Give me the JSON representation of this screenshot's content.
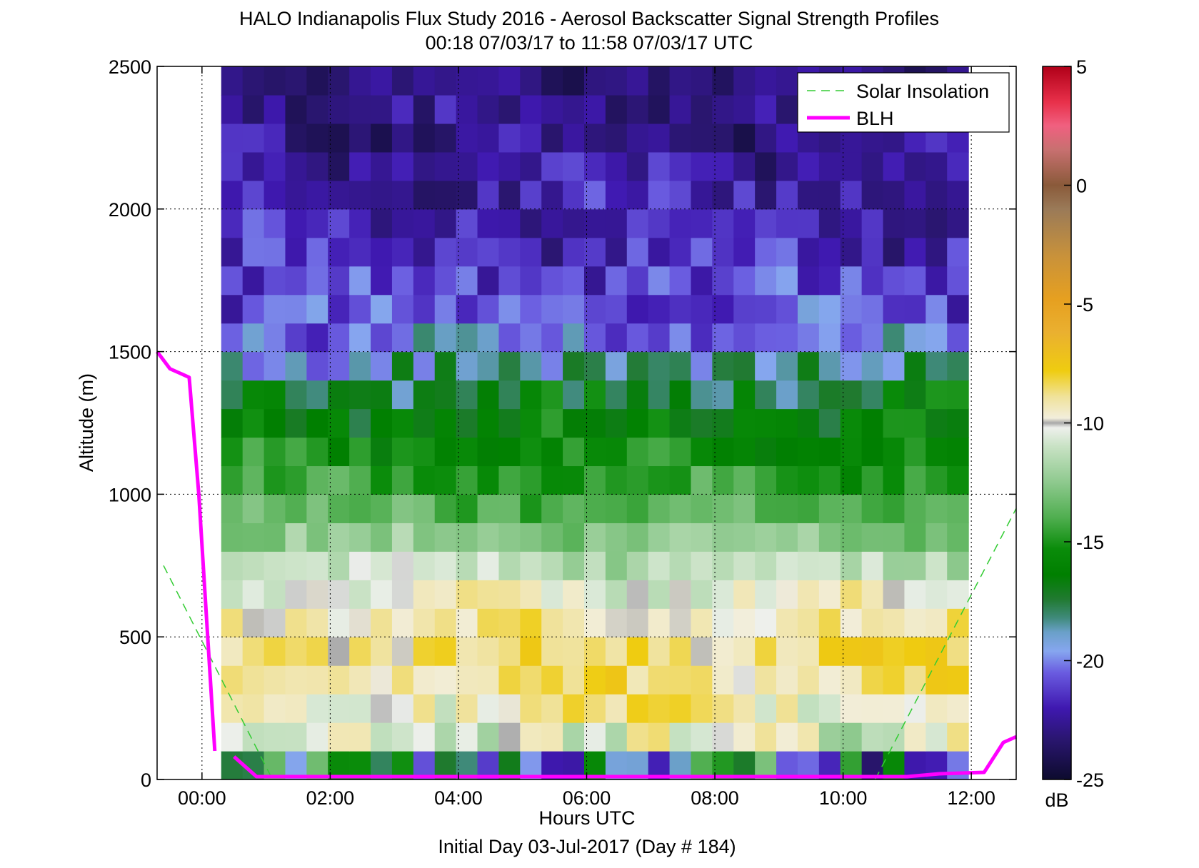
{
  "chart_data": {
    "type": "heatmap",
    "title": "HALO Indianapolis Flux Study 2016 - Aerosol Backscatter Signal Strength Profiles",
    "subtitle": "00:18 07/03/17 to 11:58 07/03/17  UTC",
    "xlabel": "Hours UTC",
    "xlabel2": "Initial Day 03-Jul-2017 (Day # 184)",
    "ylabel": "Altitude (m)",
    "xlim_hours": [
      -0.7,
      12.7
    ],
    "ylim": [
      0,
      2500
    ],
    "x_ticks": [
      {
        "value": 0,
        "label": "00:00"
      },
      {
        "value": 2,
        "label": "02:00"
      },
      {
        "value": 4,
        "label": "04:00"
      },
      {
        "value": 6,
        "label": "06:00"
      },
      {
        "value": 8,
        "label": "08:00"
      },
      {
        "value": 10,
        "label": "10:00"
      },
      {
        "value": 12,
        "label": "12:00"
      }
    ],
    "y_ticks": [
      0,
      500,
      1000,
      1500,
      2000,
      2500
    ],
    "grid": true,
    "colorbar": {
      "label": "dB",
      "range": [
        -25,
        5
      ],
      "ticks": [
        5,
        0,
        -5,
        -10,
        -15,
        -20,
        -25
      ],
      "stops": [
        {
          "v": -25,
          "c": "#0d0b2e"
        },
        {
          "v": -23.3,
          "c": "#2a1670"
        },
        {
          "v": -22,
          "c": "#3f18b0"
        },
        {
          "v": -20.5,
          "c": "#6a5ce0"
        },
        {
          "v": -19.6,
          "c": "#86a6ef"
        },
        {
          "v": -18.8,
          "c": "#6aa0c8"
        },
        {
          "v": -18.2,
          "c": "#3f8a7a"
        },
        {
          "v": -17.4,
          "c": "#207a30"
        },
        {
          "v": -16.4,
          "c": "#007f00"
        },
        {
          "v": -15.3,
          "c": "#0a8c0a"
        },
        {
          "v": -14,
          "c": "#4fae4f"
        },
        {
          "v": -12.5,
          "c": "#8ec98e"
        },
        {
          "v": -11,
          "c": "#c8e2c4"
        },
        {
          "v": -10.2,
          "c": "#eef0ec"
        },
        {
          "v": -10,
          "c": "#a8a8a8"
        },
        {
          "v": -9.8,
          "c": "#f2eedc"
        },
        {
          "v": -8.9,
          "c": "#f0e29a"
        },
        {
          "v": -7.8,
          "c": "#efcc10"
        },
        {
          "v": -6.2,
          "c": "#eab030"
        },
        {
          "v": -4.8,
          "c": "#e6a020"
        },
        {
          "v": -3,
          "c": "#c9923a"
        },
        {
          "v": -1,
          "c": "#9a7a58"
        },
        {
          "v": 0,
          "c": "#8a5a3a"
        },
        {
          "v": 1.5,
          "c": "#c87070"
        },
        {
          "v": 2.5,
          "c": "#f06080"
        },
        {
          "v": 3.5,
          "c": "#e8304a"
        },
        {
          "v": 5,
          "c": "#b00018"
        }
      ]
    },
    "heatmap": {
      "x_start_hours": 0.3,
      "x_bin_hours": 0.333,
      "z_start_m": 50,
      "z_bin_m": 100,
      "row_layers_dB": [
        {
          "z_m": 50,
          "mean": -18,
          "spread": 5
        },
        {
          "z_m": 150,
          "mean": -10.3,
          "spread": 1.8
        },
        {
          "z_m": 250,
          "mean": -9.6,
          "spread": 1.4
        },
        {
          "z_m": 350,
          "mean": -8.8,
          "spread": 1.0
        },
        {
          "z_m": 450,
          "mean": -8.6,
          "spread": 1.0
        },
        {
          "z_m": 550,
          "mean": -9.2,
          "spread": 1.0
        },
        {
          "z_m": 650,
          "mean": -10.1,
          "spread": 1.0
        },
        {
          "z_m": 750,
          "mean": -11.4,
          "spread": 0.9
        },
        {
          "z_m": 850,
          "mean": -12.6,
          "spread": 1.0
        },
        {
          "z_m": 950,
          "mean": -13.6,
          "spread": 1.0
        },
        {
          "z_m": 1050,
          "mean": -14.6,
          "spread": 1.0
        },
        {
          "z_m": 1150,
          "mean": -15.4,
          "spread": 1.0
        },
        {
          "z_m": 1250,
          "mean": -16.2,
          "spread": 1.2
        },
        {
          "z_m": 1350,
          "mean": -17.0,
          "spread": 1.8
        },
        {
          "z_m": 1450,
          "mean": -18.6,
          "spread": 1.8
        },
        {
          "z_m": 1550,
          "mean": -20.0,
          "spread": 1.6
        },
        {
          "z_m": 1650,
          "mean": -20.8,
          "spread": 1.4
        },
        {
          "z_m": 1750,
          "mean": -21.2,
          "spread": 1.4
        },
        {
          "z_m": 1850,
          "mean": -21.6,
          "spread": 1.4
        },
        {
          "z_m": 1950,
          "mean": -21.8,
          "spread": 1.4
        },
        {
          "z_m": 2050,
          "mean": -22.0,
          "spread": 1.3
        },
        {
          "z_m": 2150,
          "mean": -22.3,
          "spread": 1.3
        },
        {
          "z_m": 2250,
          "mean": -22.6,
          "spread": 1.3
        },
        {
          "z_m": 2350,
          "mean": -22.8,
          "spread": 1.3
        },
        {
          "z_m": 2450,
          "mean": -23.0,
          "spread": 1.2
        }
      ]
    },
    "series": [
      {
        "name": "Solar Insolation",
        "style": "dashed",
        "color": "#33cc33",
        "segments": [
          [
            [
              -0.6,
              750
            ],
            [
              1.1,
              0
            ]
          ],
          [
            [
              10.5,
              0
            ],
            [
              12.7,
              950
            ]
          ]
        ]
      },
      {
        "name": "BLH",
        "style": "solid",
        "color": "#ff00ff",
        "segments": [
          [
            [
              -0.7,
              1500
            ],
            [
              -0.5,
              1440
            ],
            [
              -0.2,
              1410
            ],
            [
              -0.05,
              1000
            ],
            [
              0.2,
              100
            ]
          ],
          [
            [
              0.5,
              80
            ],
            [
              0.85,
              10
            ],
            [
              11.0,
              10
            ],
            [
              11.5,
              20
            ],
            [
              12.2,
              25
            ],
            [
              12.5,
              130
            ],
            [
              12.7,
              150
            ]
          ]
        ]
      }
    ],
    "legend": {
      "position": "top-right",
      "entries": [
        "Solar Insolation",
        "BLH"
      ]
    }
  }
}
